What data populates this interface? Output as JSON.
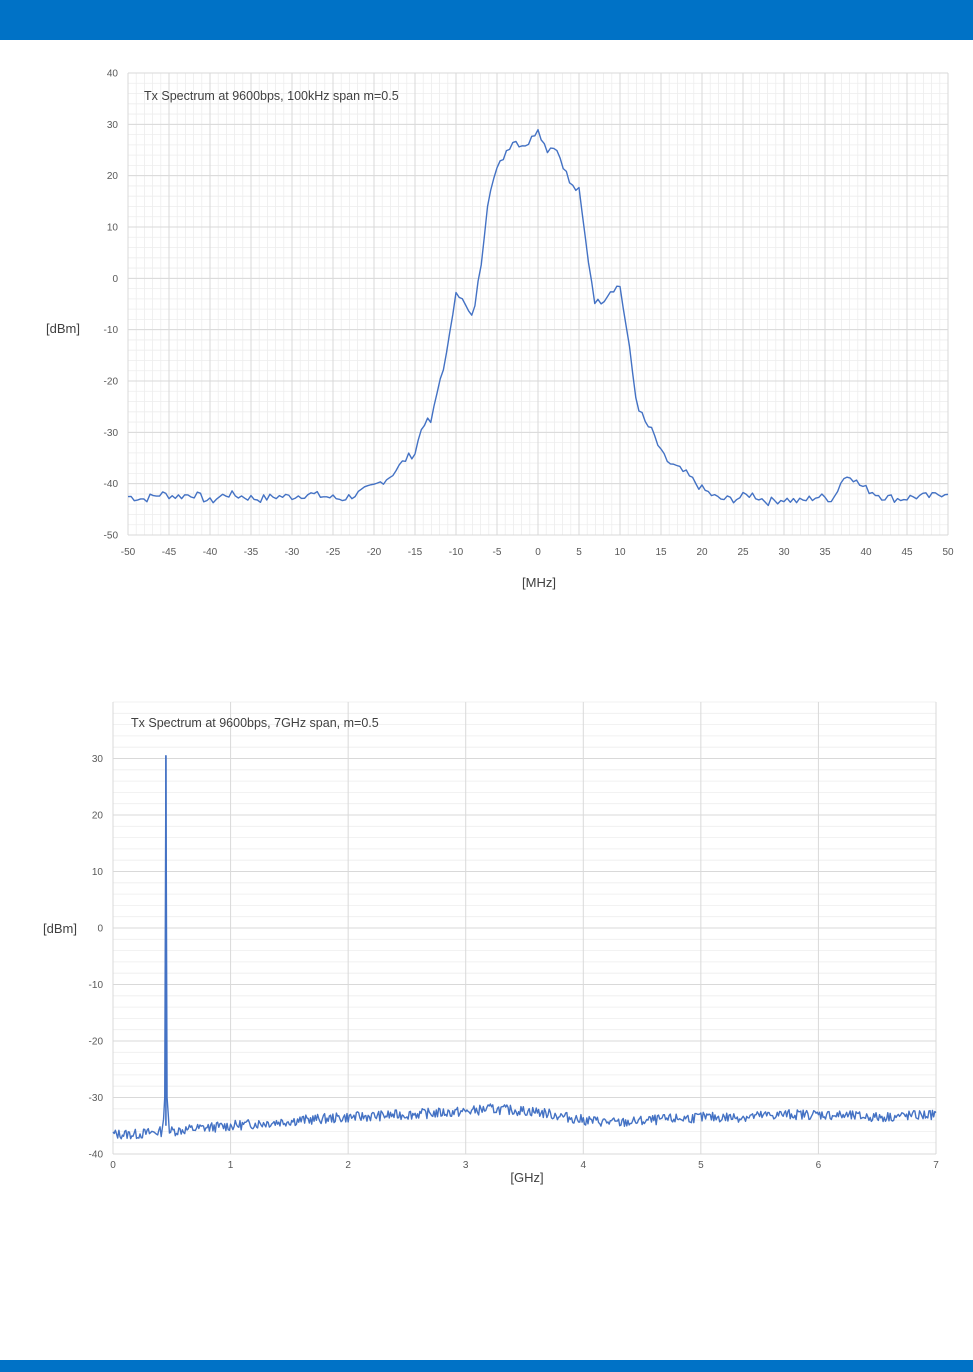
{
  "colors": {
    "band": "#0072c6",
    "series": "#4472c4",
    "grid_major": "#d9d9d9",
    "grid_minor": "#ededed",
    "text": "#595959"
  },
  "chart_data": [
    {
      "type": "line",
      "title": "Tx Spectrum at 9600bps, 100kHz span m=0.5",
      "xlabel": "[MHz]",
      "ylabel": "[dBm]",
      "xlim": [
        -50,
        50
      ],
      "ylim": [
        -50,
        40
      ],
      "xticks": [
        -50,
        -45,
        -40,
        -35,
        -30,
        -25,
        -20,
        -15,
        -10,
        -5,
        0,
        5,
        10,
        15,
        20,
        25,
        30,
        35,
        40,
        45,
        50
      ],
      "yticks": [
        -50,
        -40,
        -30,
        -20,
        -10,
        0,
        10,
        20,
        30,
        40
      ],
      "grid": true,
      "series": [
        {
          "x": [
            -50,
            -48,
            -46,
            -44,
            -42,
            -40,
            -38,
            -36,
            -34,
            -32,
            -30,
            -28,
            -26,
            -24,
            -22,
            -20,
            -18,
            -16,
            -15,
            -14,
            -13,
            -12,
            -11,
            -10,
            -9,
            -8,
            -7,
            -6,
            -5,
            -4,
            -3,
            -2,
            -1,
            0,
            1,
            2,
            3,
            4,
            5,
            6,
            7,
            8,
            9,
            10,
            11,
            12,
            13,
            14,
            15,
            16,
            17,
            18,
            20,
            22,
            24,
            26,
            28,
            30,
            32,
            34,
            36,
            37,
            38,
            39,
            40,
            42,
            44,
            46,
            48,
            50
          ],
          "y": [
            -42.5,
            -43,
            -42,
            -42.5,
            -42,
            -43.5,
            -42,
            -42.5,
            -43,
            -42.5,
            -42.5,
            -42,
            -42.5,
            -43,
            -42,
            -40.5,
            -38.5,
            -35,
            -34,
            -28,
            -28,
            -20,
            -14,
            -2,
            -5,
            -8,
            2,
            17,
            21,
            24.5,
            27,
            26,
            26.5,
            29.5,
            25,
            26,
            22.5,
            18,
            17,
            5,
            -5,
            -4,
            -2,
            -1.5,
            -12,
            -24,
            -28,
            -30,
            -34,
            -36,
            -37,
            -38,
            -41,
            -43,
            -43,
            -42,
            -43.5,
            -43,
            -43.5,
            -42.5,
            -43,
            -39.5,
            -38,
            -40,
            -41,
            -42.5,
            -43,
            -42.5,
            -42.5,
            -41.5
          ]
        }
      ]
    },
    {
      "type": "line",
      "title": "Tx Spectrum at 9600bps, 7GHz span, m=0.5",
      "xlabel": "[GHz]",
      "ylabel": "[dBm]",
      "xlim": [
        0,
        7
      ],
      "ylim": [
        -40,
        40
      ],
      "xticks": [
        0,
        1,
        2,
        3,
        4,
        5,
        6,
        7
      ],
      "yticks": [
        -40,
        -30,
        -20,
        -10,
        0,
        10,
        20,
        30
      ],
      "grid": true,
      "series": [
        {
          "x": [
            0,
            0.2,
            0.42,
            0.44,
            0.45,
            0.46,
            0.48,
            0.7,
            1.0,
            1.3,
            1.6,
            2.0,
            2.5,
            3.0,
            3.2,
            3.6,
            4.0,
            4.3,
            4.6,
            5.0,
            5.3,
            5.7,
            6.0,
            6.5,
            7.0
          ],
          "y": [
            -36.5,
            -36.5,
            -36,
            -30,
            30.5,
            -30,
            -36,
            -35.5,
            -35,
            -34.5,
            -34,
            -33.5,
            -33,
            -32.5,
            -32,
            -32.5,
            -34,
            -34.5,
            -34,
            -33.5,
            -33.5,
            -33,
            -33,
            -33.5,
            -33
          ]
        }
      ]
    }
  ]
}
